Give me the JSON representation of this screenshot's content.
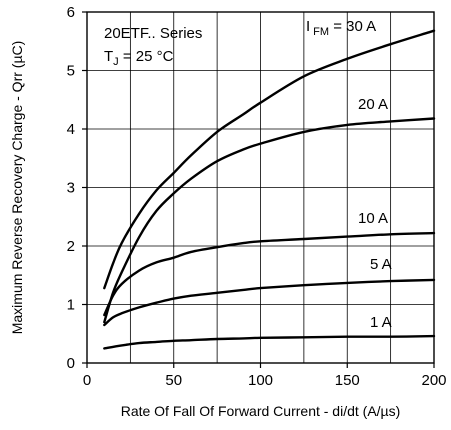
{
  "chart_data": {
    "type": "line",
    "xlabel": "Rate Of Fall Of Forward Current - di/dt (A/µs)",
    "ylabel": "Maximum Reverse Recovery Charge - Qrr (µC)",
    "xlim": [
      0,
      200
    ],
    "ylim": [
      0,
      6
    ],
    "x_ticks": [
      "0",
      "50",
      "100",
      "150",
      "200"
    ],
    "y_ticks": [
      "0",
      "1",
      "2",
      "3",
      "4",
      "5",
      "6"
    ],
    "grid": true,
    "annotations": {
      "series_name": "20ETF.. Series",
      "temp_main": "T",
      "temp_sub": "J",
      "temp_rest": " = 25 °C"
    },
    "series": [
      {
        "name": "30 A",
        "label_prefix": "I",
        "label_sub": "FM",
        "label_rest": " = 30 A",
        "x": [
          10,
          15,
          20,
          30,
          40,
          50,
          60,
          75,
          90,
          100,
          125,
          150,
          175,
          200
        ],
        "y": [
          1.28,
          1.7,
          2.05,
          2.55,
          2.95,
          3.25,
          3.55,
          3.95,
          4.25,
          4.45,
          4.9,
          5.2,
          5.45,
          5.68
        ]
      },
      {
        "name": "20 A",
        "label": "20 A",
        "x": [
          10,
          15,
          20,
          30,
          40,
          50,
          60,
          75,
          90,
          100,
          125,
          150,
          175,
          200
        ],
        "y": [
          0.7,
          1.2,
          1.55,
          2.15,
          2.6,
          2.9,
          3.15,
          3.45,
          3.65,
          3.75,
          3.95,
          4.07,
          4.13,
          4.18
        ]
      },
      {
        "name": "10 A",
        "label": "10 A",
        "x": [
          10,
          15,
          20,
          30,
          40,
          50,
          60,
          75,
          90,
          100,
          125,
          150,
          175,
          200
        ],
        "y": [
          0.82,
          1.15,
          1.35,
          1.58,
          1.72,
          1.8,
          1.9,
          1.98,
          2.05,
          2.08,
          2.12,
          2.16,
          2.2,
          2.22
        ]
      },
      {
        "name": "5 A",
        "label": "5 A",
        "x": [
          10,
          15,
          20,
          30,
          40,
          50,
          60,
          75,
          90,
          100,
          125,
          150,
          175,
          200
        ],
        "y": [
          0.65,
          0.78,
          0.85,
          0.95,
          1.03,
          1.1,
          1.15,
          1.2,
          1.25,
          1.28,
          1.33,
          1.37,
          1.4,
          1.42
        ]
      },
      {
        "name": "1 A",
        "label": "1 A",
        "x": [
          10,
          20,
          30,
          40,
          50,
          60,
          75,
          90,
          100,
          125,
          150,
          175,
          200
        ],
        "y": [
          0.25,
          0.3,
          0.34,
          0.36,
          0.38,
          0.39,
          0.41,
          0.42,
          0.43,
          0.44,
          0.45,
          0.45,
          0.46
        ]
      }
    ]
  }
}
